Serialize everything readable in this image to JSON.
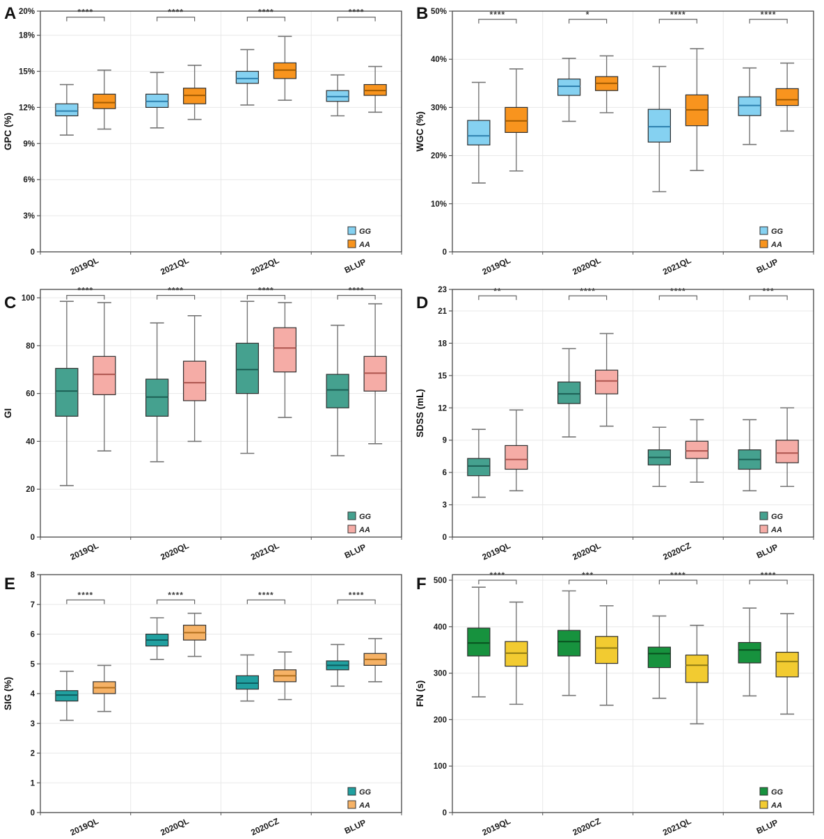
{
  "figure": {
    "description": "Six-panel genotype comparison boxplot figure",
    "genotypes": [
      "GG",
      "AA"
    ],
    "whisker_color": "#757575",
    "box_border_color": "#2e2e2e",
    "grid_color": "#e8e8e8",
    "frame_color": "#444444",
    "sig_bracket_color": "#666666",
    "text_color": "#1a1a1a"
  },
  "box_stats_format": [
    "whisker_low",
    "q1",
    "median",
    "q3",
    "whisker_high"
  ],
  "chart_data": [
    {
      "panel": "A",
      "type": "box",
      "ylabel": "GPC (%)",
      "ylim": [
        0,
        20
      ],
      "yticks": [
        {
          "value": 0,
          "label": "0"
        },
        {
          "value": 3,
          "label": "3%"
        },
        {
          "value": 6,
          "label": "6%"
        },
        {
          "value": 9,
          "label": "9%"
        },
        {
          "value": 12,
          "label": "12%"
        },
        {
          "value": 15,
          "label": "15%"
        },
        {
          "value": 18,
          "label": "18%"
        },
        {
          "value": 20,
          "label": "20%"
        }
      ],
      "categories": [
        "2019QL",
        "2021QL",
        "2022QL",
        "BLUP"
      ],
      "significance": [
        "****",
        "****",
        "****",
        "****"
      ],
      "sig_bracket_y": 19.5,
      "grid": true,
      "legend_position": "bottom-right",
      "series": [
        {
          "name": "GG",
          "fill": "#85d1f1",
          "median_color": "#2c7fad",
          "boxes": [
            [
              9.7,
              11.3,
              11.7,
              12.3,
              13.9
            ],
            [
              10.3,
              12.0,
              12.5,
              13.1,
              14.9
            ],
            [
              12.2,
              14.0,
              14.4,
              15.0,
              16.8
            ],
            [
              11.3,
              12.5,
              12.9,
              13.4,
              14.7
            ]
          ]
        },
        {
          "name": "AA",
          "fill": "#f8941e",
          "median_color": "#a35b00",
          "boxes": [
            [
              10.2,
              11.9,
              12.4,
              13.1,
              15.1
            ],
            [
              11.0,
              12.3,
              13.0,
              13.6,
              15.5
            ],
            [
              12.6,
              14.4,
              15.1,
              15.7,
              17.9
            ],
            [
              11.6,
              13.0,
              13.4,
              13.9,
              15.4
            ]
          ]
        }
      ]
    },
    {
      "panel": "B",
      "type": "box",
      "ylabel": "WGC (%)",
      "ylim": [
        0,
        50
      ],
      "yticks": [
        {
          "value": 0,
          "label": "0"
        },
        {
          "value": 10,
          "label": "10%"
        },
        {
          "value": 20,
          "label": "20%"
        },
        {
          "value": 30,
          "label": "30%"
        },
        {
          "value": 40,
          "label": "40%"
        },
        {
          "value": 50,
          "label": "50%"
        }
      ],
      "categories": [
        "2019QL",
        "2020QL",
        "2021QL",
        "BLUP"
      ],
      "significance": [
        "****",
        "*",
        "****",
        "****"
      ],
      "sig_bracket_y": 48.3,
      "grid": true,
      "legend_position": "bottom-right",
      "series": [
        {
          "name": "GG",
          "fill": "#85d1f1",
          "median_color": "#2c7fad",
          "boxes": [
            [
              14.3,
              22.2,
              24.1,
              27.3,
              35.2
            ],
            [
              27.1,
              32.5,
              34.4,
              35.9,
              40.2
            ],
            [
              12.5,
              22.8,
              26.0,
              29.6,
              38.5
            ],
            [
              22.3,
              28.3,
              30.4,
              32.2,
              38.2
            ]
          ]
        },
        {
          "name": "AA",
          "fill": "#f8941e",
          "median_color": "#a35b00",
          "boxes": [
            [
              16.8,
              24.8,
              27.2,
              30.0,
              38.0
            ],
            [
              28.9,
              33.5,
              35.0,
              36.4,
              40.7
            ],
            [
              16.9,
              26.2,
              29.5,
              32.6,
              42.2
            ],
            [
              25.1,
              30.4,
              31.6,
              33.9,
              39.2
            ]
          ]
        }
      ]
    },
    {
      "panel": "C",
      "type": "box",
      "ylabel": "GI",
      "ylim": [
        0,
        103.5
      ],
      "yticks": [
        {
          "value": 0,
          "label": "0"
        },
        {
          "value": 20,
          "label": "20"
        },
        {
          "value": 40,
          "label": "40"
        },
        {
          "value": 60,
          "label": "60"
        },
        {
          "value": 80,
          "label": "80"
        },
        {
          "value": 100,
          "label": "100"
        }
      ],
      "categories": [
        "2019QL",
        "2020QL",
        "2021QL",
        "BLUP"
      ],
      "significance": [
        "****",
        "****",
        "****",
        "****"
      ],
      "sig_bracket_y": 101,
      "grid": true,
      "legend_position": "bottom-right",
      "series": [
        {
          "name": "GG",
          "fill": "#45a18f",
          "median_color": "#1c5f54",
          "boxes": [
            [
              21.5,
              50.5,
              61,
              70.5,
              98.5
            ],
            [
              31.5,
              50.5,
              58.5,
              66,
              89.5
            ],
            [
              35,
              60,
              70,
              81,
              98.5
            ],
            [
              34,
              54,
              61.5,
              68,
              88.5
            ]
          ]
        },
        {
          "name": "AA",
          "fill": "#f5aca6",
          "median_color": "#ad544e",
          "boxes": [
            [
              36,
              59.5,
              68,
              75.5,
              98
            ],
            [
              40,
              57,
              64.5,
              73.5,
              92.5
            ],
            [
              50,
              69,
              79,
              87.5,
              98
            ],
            [
              39,
              61,
              68.5,
              75.5,
              97.5
            ]
          ]
        }
      ]
    },
    {
      "panel": "D",
      "type": "box",
      "ylabel": "SDSS (mL)",
      "ylim": [
        0,
        23
      ],
      "yticks": [
        {
          "value": 0,
          "label": "0"
        },
        {
          "value": 3,
          "label": "3"
        },
        {
          "value": 6,
          "label": "6"
        },
        {
          "value": 9,
          "label": "9"
        },
        {
          "value": 12,
          "label": "12"
        },
        {
          "value": 15,
          "label": "15"
        },
        {
          "value": 18,
          "label": "18"
        },
        {
          "value": 21,
          "label": "21"
        },
        {
          "value": 23,
          "label": "23"
        }
      ],
      "categories": [
        "2019QL",
        "2020QL",
        "2020CZ",
        "BLUP"
      ],
      "significance": [
        "**",
        "****",
        "****",
        "***"
      ],
      "sig_bracket_y": 22.4,
      "grid": true,
      "legend_position": "bottom-right",
      "series": [
        {
          "name": "GG",
          "fill": "#45a18f",
          "median_color": "#1c5f54",
          "boxes": [
            [
              3.7,
              5.7,
              6.6,
              7.3,
              10.0
            ],
            [
              9.3,
              12.4,
              13.3,
              14.4,
              17.5
            ],
            [
              4.7,
              6.7,
              7.4,
              8.1,
              10.2
            ],
            [
              4.3,
              6.3,
              7.2,
              8.1,
              10.9
            ]
          ]
        },
        {
          "name": "AA",
          "fill": "#f5aca6",
          "median_color": "#ad544e",
          "boxes": [
            [
              4.3,
              6.3,
              7.2,
              8.5,
              11.8
            ],
            [
              10.3,
              13.3,
              14.5,
              15.5,
              18.9
            ],
            [
              5.1,
              7.3,
              8.0,
              8.9,
              10.9
            ],
            [
              4.7,
              6.9,
              7.8,
              9.0,
              12.0
            ]
          ]
        }
      ]
    },
    {
      "panel": "E",
      "type": "box",
      "ylabel": "SIG (%)",
      "ylim": [
        0,
        8
      ],
      "yticks": [
        {
          "value": 0,
          "label": "0"
        },
        {
          "value": 1,
          "label": "1"
        },
        {
          "value": 2,
          "label": "2"
        },
        {
          "value": 3,
          "label": "3"
        },
        {
          "value": 4,
          "label": "4"
        },
        {
          "value": 5,
          "label": "5"
        },
        {
          "value": 6,
          "label": "6"
        },
        {
          "value": 7,
          "label": "7"
        },
        {
          "value": 8,
          "label": "8"
        }
      ],
      "categories": [
        "2019QL",
        "2020QL",
        "2020CZ",
        "BLUP"
      ],
      "significance": [
        "****",
        "****",
        "****",
        "****"
      ],
      "sig_bracket_y": 7.15,
      "grid": true,
      "legend_position": "bottom-right",
      "series": [
        {
          "name": "GG",
          "fill": "#21a0a0",
          "median_color": "#0e5d60",
          "boxes": [
            [
              3.1,
              3.75,
              3.95,
              4.1,
              4.75
            ],
            [
              5.15,
              5.6,
              5.8,
              6.0,
              6.55
            ],
            [
              3.75,
              4.15,
              4.35,
              4.6,
              5.3
            ],
            [
              4.25,
              4.8,
              4.95,
              5.1,
              5.65
            ]
          ]
        },
        {
          "name": "AA",
          "fill": "#f6b266",
          "median_color": "#b26f1d",
          "boxes": [
            [
              3.4,
              4.0,
              4.2,
              4.4,
              4.95
            ],
            [
              5.25,
              5.8,
              6.05,
              6.3,
              6.7
            ],
            [
              3.8,
              4.4,
              4.6,
              4.8,
              5.4
            ],
            [
              4.4,
              4.95,
              5.15,
              5.35,
              5.85
            ]
          ]
        }
      ]
    },
    {
      "panel": "F",
      "type": "box",
      "ylabel": "FN (s)",
      "ylim": [
        0,
        512
      ],
      "yticks": [
        {
          "value": 0,
          "label": "0"
        },
        {
          "value": 100,
          "label": "100"
        },
        {
          "value": 200,
          "label": "200"
        },
        {
          "value": 300,
          "label": "300"
        },
        {
          "value": 400,
          "label": "400"
        },
        {
          "value": 500,
          "label": "500"
        }
      ],
      "categories": [
        "2019QL",
        "2020CZ",
        "2021QL",
        "BLUP"
      ],
      "significance": [
        "****",
        "***",
        "****",
        "****"
      ],
      "sig_bracket_y": 500,
      "grid": true,
      "legend_position": "bottom-right",
      "series": [
        {
          "name": "GG",
          "fill": "#17923e",
          "median_color": "#084f1e",
          "boxes": [
            [
              249,
              337,
              365,
              397,
              485
            ],
            [
              252,
              337,
              368,
              392,
              477
            ],
            [
              246,
              312,
              342,
              356,
              423
            ],
            [
              251,
              322,
              350,
              366,
              440
            ]
          ]
        },
        {
          "name": "AA",
          "fill": "#f2cb31",
          "median_color": "#8f7b12",
          "boxes": [
            [
              233,
              315,
              343,
              368,
              453
            ],
            [
              231,
              321,
              354,
              379,
              445
            ],
            [
              191,
              280,
              317,
              339,
              403
            ],
            [
              212,
              292,
              325,
              345,
              428
            ]
          ]
        }
      ]
    }
  ]
}
